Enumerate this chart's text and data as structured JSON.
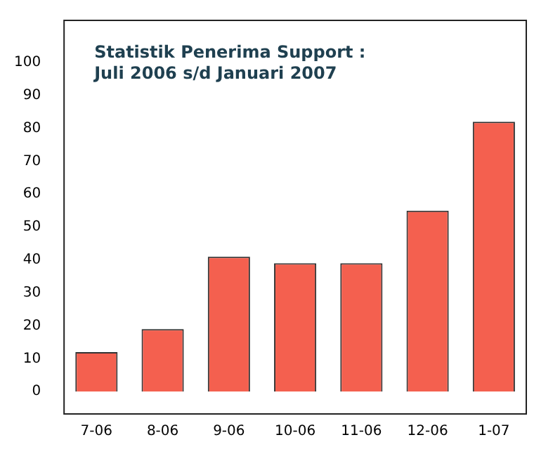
{
  "chart_data": {
    "type": "bar",
    "title": "Statistik Penerima Support :",
    "subtitle": "Juli 2006 s/d Januari 2007",
    "categories": [
      "7-06",
      "8-06",
      "9-06",
      "10-06",
      "11-06",
      "12-06",
      "1-07"
    ],
    "values": [
      12,
      19,
      41,
      39,
      39,
      55,
      82
    ],
    "color": "#f4604f",
    "ylim": [
      -7,
      113
    ],
    "yticks": [
      0,
      10,
      20,
      30,
      40,
      50,
      60,
      70,
      80,
      90,
      100
    ],
    "grid": false
  }
}
